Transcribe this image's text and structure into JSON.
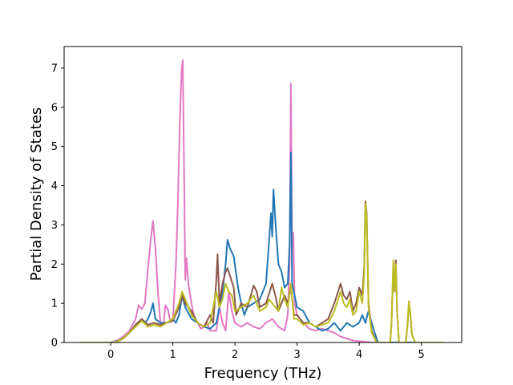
{
  "chart_data": {
    "type": "line",
    "title": "",
    "xlabel": "Frequency (THz)",
    "ylabel": "Partial Density of States",
    "xlim": [
      -0.75,
      5.65
    ],
    "ylim": [
      0,
      7.55
    ],
    "xticks": [
      0,
      1,
      2,
      3,
      4,
      5
    ],
    "yticks": [
      0,
      1,
      2,
      3,
      4,
      5,
      6,
      7
    ],
    "grid": false,
    "legend": "none",
    "series": [
      {
        "color": "#e377c2",
        "points": [
          [
            -0.5,
            0
          ],
          [
            0,
            0
          ],
          [
            0.1,
            0.05
          ],
          [
            0.2,
            0.15
          ],
          [
            0.3,
            0.3
          ],
          [
            0.4,
            0.6
          ],
          [
            0.45,
            0.95
          ],
          [
            0.5,
            0.85
          ],
          [
            0.55,
            1.0
          ],
          [
            0.6,
            1.9
          ],
          [
            0.65,
            2.7
          ],
          [
            0.68,
            3.1
          ],
          [
            0.72,
            2.4
          ],
          [
            0.76,
            1.3
          ],
          [
            0.8,
            0.5
          ],
          [
            0.85,
            0.45
          ],
          [
            0.88,
            0.95
          ],
          [
            0.92,
            0.85
          ],
          [
            0.95,
            0.6
          ],
          [
            1.0,
            0.55
          ],
          [
            1.02,
            1.1
          ],
          [
            1.05,
            2.0
          ],
          [
            1.08,
            3.5
          ],
          [
            1.11,
            5.5
          ],
          [
            1.14,
            6.9
          ],
          [
            1.16,
            7.2
          ],
          [
            1.18,
            4.5
          ],
          [
            1.2,
            1.6
          ],
          [
            1.22,
            2.15
          ],
          [
            1.25,
            1.5
          ],
          [
            1.3,
            1.0
          ],
          [
            1.35,
            0.6
          ],
          [
            1.4,
            0.5
          ],
          [
            1.45,
            0.35
          ],
          [
            1.5,
            0.4
          ],
          [
            1.55,
            0.5
          ],
          [
            1.6,
            0.3
          ],
          [
            1.7,
            0.3
          ],
          [
            1.75,
            0.9
          ],
          [
            1.8,
            0.5
          ],
          [
            1.85,
            0.3
          ],
          [
            1.9,
            1.3
          ],
          [
            1.95,
            0.8
          ],
          [
            2.0,
            0.5
          ],
          [
            2.1,
            0.4
          ],
          [
            2.2,
            0.5
          ],
          [
            2.3,
            0.4
          ],
          [
            2.4,
            0.35
          ],
          [
            2.5,
            0.5
          ],
          [
            2.6,
            0.6
          ],
          [
            2.7,
            0.4
          ],
          [
            2.8,
            0.3
          ],
          [
            2.85,
            0.7
          ],
          [
            2.88,
            2.0
          ],
          [
            2.9,
            6.6
          ],
          [
            2.92,
            2.5
          ],
          [
            2.94,
            2.8
          ],
          [
            2.96,
            1.0
          ],
          [
            3.0,
            0.7
          ],
          [
            3.1,
            0.5
          ],
          [
            3.2,
            0.35
          ],
          [
            3.3,
            0.3
          ],
          [
            3.4,
            0.35
          ],
          [
            3.5,
            0.3
          ],
          [
            3.6,
            0.25
          ],
          [
            3.7,
            0.15
          ],
          [
            3.8,
            0.1
          ],
          [
            3.9,
            0.05
          ],
          [
            4.0,
            0.03
          ],
          [
            4.1,
            0.02
          ],
          [
            4.2,
            0
          ],
          [
            5.35,
            0
          ]
        ]
      },
      {
        "color": "#1f77b4",
        "points": [
          [
            -0.5,
            0
          ],
          [
            0,
            0
          ],
          [
            0.1,
            0.03
          ],
          [
            0.2,
            0.1
          ],
          [
            0.3,
            0.25
          ],
          [
            0.4,
            0.45
          ],
          [
            0.5,
            0.6
          ],
          [
            0.55,
            0.5
          ],
          [
            0.6,
            0.6
          ],
          [
            0.65,
            0.8
          ],
          [
            0.68,
            1.0
          ],
          [
            0.72,
            0.6
          ],
          [
            0.8,
            0.5
          ],
          [
            0.9,
            0.5
          ],
          [
            1.0,
            0.6
          ],
          [
            1.05,
            0.5
          ],
          [
            1.1,
            0.7
          ],
          [
            1.15,
            1.2
          ],
          [
            1.2,
            0.9
          ],
          [
            1.3,
            0.6
          ],
          [
            1.4,
            0.5
          ],
          [
            1.5,
            0.4
          ],
          [
            1.6,
            0.35
          ],
          [
            1.7,
            0.5
          ],
          [
            1.75,
            0.9
          ],
          [
            1.8,
            1.3
          ],
          [
            1.85,
            2.0
          ],
          [
            1.88,
            2.62
          ],
          [
            1.92,
            2.4
          ],
          [
            1.98,
            2.2
          ],
          [
            2.05,
            1.4
          ],
          [
            2.1,
            1.0
          ],
          [
            2.15,
            0.7
          ],
          [
            2.2,
            0.9
          ],
          [
            2.3,
            1.0
          ],
          [
            2.4,
            1.1
          ],
          [
            2.5,
            1.5
          ],
          [
            2.55,
            2.6
          ],
          [
            2.58,
            3.3
          ],
          [
            2.6,
            2.7
          ],
          [
            2.62,
            3.9
          ],
          [
            2.65,
            3.1
          ],
          [
            2.7,
            2.0
          ],
          [
            2.75,
            1.8
          ],
          [
            2.8,
            1.4
          ],
          [
            2.85,
            1.5
          ],
          [
            2.88,
            2.5
          ],
          [
            2.9,
            4.85
          ],
          [
            2.92,
            1.5
          ],
          [
            2.96,
            1.2
          ],
          [
            3.0,
            0.9
          ],
          [
            3.1,
            0.8
          ],
          [
            3.2,
            0.5
          ],
          [
            3.3,
            0.4
          ],
          [
            3.4,
            0.3
          ],
          [
            3.5,
            0.35
          ],
          [
            3.6,
            0.5
          ],
          [
            3.7,
            0.3
          ],
          [
            3.8,
            0.5
          ],
          [
            3.9,
            0.4
          ],
          [
            4.0,
            0.5
          ],
          [
            4.05,
            0.7
          ],
          [
            4.1,
            0.5
          ],
          [
            4.15,
            0.8
          ],
          [
            4.2,
            0.5
          ],
          [
            4.3,
            0
          ],
          [
            5.35,
            0
          ]
        ]
      },
      {
        "color": "#8c564b",
        "points": [
          [
            -0.5,
            0
          ],
          [
            0,
            0
          ],
          [
            0.1,
            0.02
          ],
          [
            0.2,
            0.1
          ],
          [
            0.3,
            0.25
          ],
          [
            0.4,
            0.45
          ],
          [
            0.5,
            0.6
          ],
          [
            0.6,
            0.45
          ],
          [
            0.7,
            0.5
          ],
          [
            0.8,
            0.45
          ],
          [
            0.9,
            0.5
          ],
          [
            1.0,
            0.55
          ],
          [
            1.1,
            0.9
          ],
          [
            1.15,
            1.2
          ],
          [
            1.2,
            1.0
          ],
          [
            1.3,
            0.8
          ],
          [
            1.4,
            0.5
          ],
          [
            1.5,
            0.4
          ],
          [
            1.6,
            0.7
          ],
          [
            1.65,
            0.5
          ],
          [
            1.7,
            1.6
          ],
          [
            1.72,
            2.25
          ],
          [
            1.75,
            1.0
          ],
          [
            1.8,
            1.5
          ],
          [
            1.85,
            1.8
          ],
          [
            1.88,
            1.9
          ],
          [
            1.92,
            1.7
          ],
          [
            1.98,
            1.4
          ],
          [
            2.02,
            0.7
          ],
          [
            2.1,
            1.0
          ],
          [
            2.2,
            0.9
          ],
          [
            2.3,
            1.45
          ],
          [
            2.35,
            1.3
          ],
          [
            2.4,
            0.9
          ],
          [
            2.5,
            1.0
          ],
          [
            2.6,
            1.5
          ],
          [
            2.65,
            1.2
          ],
          [
            2.7,
            0.8
          ],
          [
            2.75,
            1.0
          ],
          [
            2.8,
            1.2
          ],
          [
            2.85,
            1.0
          ],
          [
            2.9,
            1.4
          ],
          [
            2.95,
            0.7
          ],
          [
            3.0,
            0.7
          ],
          [
            3.1,
            0.5
          ],
          [
            3.2,
            0.5
          ],
          [
            3.3,
            0.4
          ],
          [
            3.4,
            0.5
          ],
          [
            3.5,
            0.6
          ],
          [
            3.6,
            1.0
          ],
          [
            3.7,
            1.5
          ],
          [
            3.75,
            1.2
          ],
          [
            3.8,
            1.1
          ],
          [
            3.85,
            1.3
          ],
          [
            3.9,
            0.8
          ],
          [
            3.95,
            1.0
          ],
          [
            4.0,
            1.4
          ],
          [
            4.05,
            1.2
          ],
          [
            4.08,
            1.9
          ],
          [
            4.1,
            3.6
          ],
          [
            4.12,
            3.3
          ],
          [
            4.15,
            1.0
          ],
          [
            4.2,
            0.3
          ],
          [
            4.28,
            0
          ],
          [
            4.5,
            0
          ],
          [
            4.52,
            0.5
          ],
          [
            4.55,
            2.0
          ],
          [
            4.57,
            1.3
          ],
          [
            4.59,
            2.1
          ],
          [
            4.61,
            0.8
          ],
          [
            4.64,
            0
          ],
          [
            4.75,
            0
          ],
          [
            4.78,
            0.5
          ],
          [
            4.8,
            1.0
          ],
          [
            4.82,
            0.8
          ],
          [
            4.85,
            0.2
          ],
          [
            4.9,
            0
          ],
          [
            5.35,
            0
          ]
        ]
      },
      {
        "color": "#bcbd22",
        "points": [
          [
            -0.5,
            0
          ],
          [
            0,
            0
          ],
          [
            0.1,
            0.02
          ],
          [
            0.2,
            0.1
          ],
          [
            0.3,
            0.25
          ],
          [
            0.4,
            0.4
          ],
          [
            0.5,
            0.55
          ],
          [
            0.6,
            0.4
          ],
          [
            0.7,
            0.45
          ],
          [
            0.8,
            0.4
          ],
          [
            0.9,
            0.5
          ],
          [
            1.0,
            0.6
          ],
          [
            1.1,
            1.0
          ],
          [
            1.15,
            1.3
          ],
          [
            1.2,
            1.1
          ],
          [
            1.3,
            0.7
          ],
          [
            1.4,
            0.5
          ],
          [
            1.5,
            0.4
          ],
          [
            1.6,
            0.5
          ],
          [
            1.7,
            1.3
          ],
          [
            1.75,
            0.9
          ],
          [
            1.8,
            1.1
          ],
          [
            1.85,
            1.5
          ],
          [
            1.9,
            1.3
          ],
          [
            1.95,
            1.2
          ],
          [
            2.0,
            0.8
          ],
          [
            2.1,
            0.9
          ],
          [
            2.2,
            1.0
          ],
          [
            2.3,
            1.2
          ],
          [
            2.4,
            0.8
          ],
          [
            2.5,
            0.9
          ],
          [
            2.55,
            1.1
          ],
          [
            2.6,
            1.0
          ],
          [
            2.7,
            0.8
          ],
          [
            2.75,
            1.4
          ],
          [
            2.8,
            1.1
          ],
          [
            2.85,
            0.9
          ],
          [
            2.9,
            1.5
          ],
          [
            2.95,
            0.6
          ],
          [
            3.0,
            0.6
          ],
          [
            3.1,
            0.45
          ],
          [
            3.2,
            0.5
          ],
          [
            3.3,
            0.4
          ],
          [
            3.4,
            0.45
          ],
          [
            3.5,
            0.5
          ],
          [
            3.6,
            0.8
          ],
          [
            3.7,
            1.3
          ],
          [
            3.75,
            1.0
          ],
          [
            3.8,
            0.9
          ],
          [
            3.85,
            1.1
          ],
          [
            3.9,
            0.7
          ],
          [
            3.95,
            0.8
          ],
          [
            4.0,
            1.3
          ],
          [
            4.05,
            1.0
          ],
          [
            4.08,
            1.7
          ],
          [
            4.1,
            3.55
          ],
          [
            4.12,
            3.2
          ],
          [
            4.15,
            0.9
          ],
          [
            4.2,
            0.25
          ],
          [
            4.28,
            0
          ],
          [
            4.5,
            0
          ],
          [
            4.52,
            0.5
          ],
          [
            4.55,
            2.1
          ],
          [
            4.57,
            1.3
          ],
          [
            4.59,
            2.0
          ],
          [
            4.61,
            0.8
          ],
          [
            4.64,
            0
          ],
          [
            4.75,
            0
          ],
          [
            4.78,
            0.5
          ],
          [
            4.8,
            1.05
          ],
          [
            4.82,
            0.8
          ],
          [
            4.85,
            0.2
          ],
          [
            4.9,
            0
          ],
          [
            5.35,
            0
          ]
        ]
      }
    ]
  }
}
